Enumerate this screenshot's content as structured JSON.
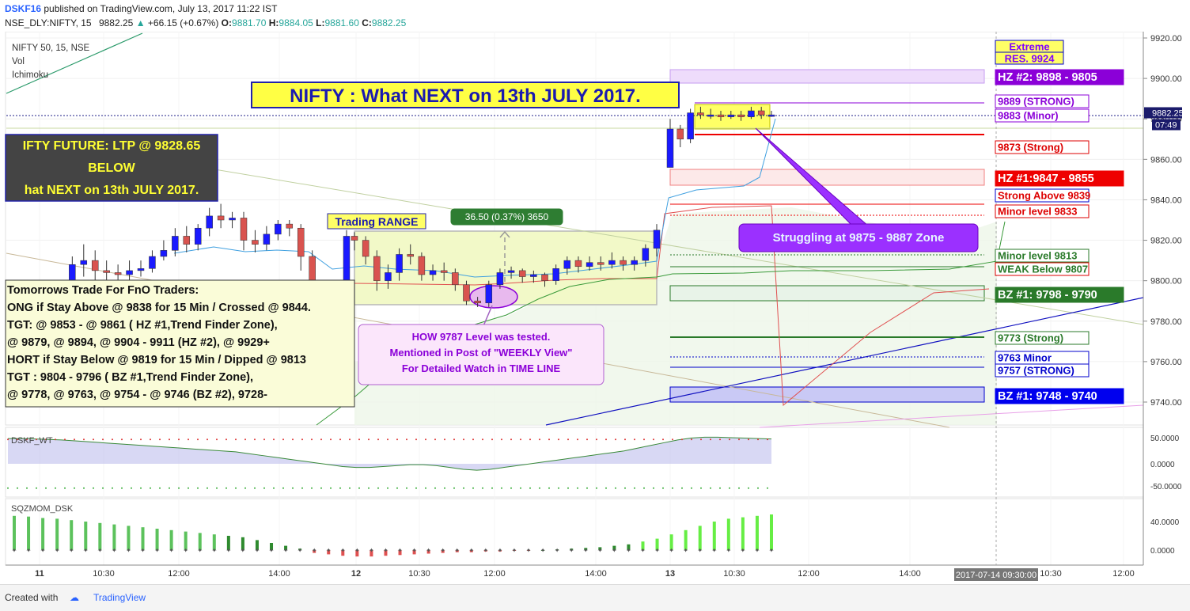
{
  "header": {
    "author": "DSKF16",
    "published": "published on TradingView.com, July 13, 2017 11:22 IST",
    "symbol": "NSE_DLY:NIFTY, 15",
    "last": "9882.25",
    "change": "+66.15 (+0.67%)",
    "o_label": "O:",
    "o": "9881.70",
    "h_label": "H:",
    "h": "9884.05",
    "l_label": "L:",
    "l": "9881.60",
    "c_label": "C:",
    "c": "9882.25"
  },
  "legend": [
    "NIFTY 50, 15, NSE",
    "Vol",
    "Ichimoku"
  ],
  "main_title": "NIFTY : What NEXT on 13th JULY 2017.",
  "dark_box": [
    "IFTY FUTURE: LTP @ 9828.65",
    "BELOW",
    "hat NEXT on 13th JULY 2017."
  ],
  "trade_box": [
    "Tomorrows Trade For FnO Traders:",
    "ONG if Stay Above @ 9838 for 15 Min / Crossed @ 9844.",
    "TGT: @ 9853 - @ 9861 ( HZ #1,Trend Finder Zone),",
    "@ 9879, @ 9894, @ 9904 - 9911 (HZ #2), @ 9929+",
    "HORT if Stay Below @ 9819 for 15 Min / Dipped @ 9813",
    "TGT : 9804 - 9796 ( BZ #1,Trend Finder Zone),",
    "@ 9778, @ 9763, @ 9754 - @ 9746 (BZ #2), 9728-"
  ],
  "how_box": [
    "HOW 9787 Level was tested.",
    "Mentioned in Post of \"WEEKLY View\"",
    "For Detailed Watch in TIME LINE"
  ],
  "trading_range": "Trading RANGE",
  "measure": "36.50 (0.37%) 3650",
  "struggling": "Struggling at 9875 - 9887 Zone",
  "levels": [
    {
      "text": "Extreme",
      "price": 9928,
      "fg": "#8000ff",
      "bg": "#ffff66",
      "border": "#0000cc"
    },
    {
      "text": "RES. 9924",
      "price": 9922,
      "fg": "#8000ff",
      "bg": "#ffff66",
      "border": "#0000cc"
    },
    {
      "text": "HZ #2: 9898 - 9805",
      "price": 9900,
      "fg": "#ffffff",
      "bg": "#8b00d8",
      "border": "#8b00d8"
    },
    {
      "text": "9889 (STRONG)",
      "price": 9889,
      "fg": "#8b00d8",
      "bg": "#ffffff",
      "border": "#8b00d8"
    },
    {
      "text": "9883 (Minor)",
      "price": 9883,
      "fg": "#8b00d8",
      "bg": "#ffffff",
      "border": "#8b00d8"
    },
    {
      "text": "9873 (Strong)",
      "price": 9873,
      "fg": "#dd0000",
      "bg": "#ffffff",
      "border": "#dd0000"
    },
    {
      "text": "HZ #1:9847 - 9855",
      "price": 9851,
      "fg": "#ffffff",
      "bg": "#ee0000",
      "border": "#ee0000"
    },
    {
      "text": "Strong  Above 9839",
      "price": 9841,
      "fg": "#dd0000",
      "bg": "#ffffff",
      "border": "#0000cc"
    },
    {
      "text": "Minor level 9833",
      "price": 9833,
      "fg": "#dd0000",
      "bg": "#ffffff",
      "border": "#dd0000"
    },
    {
      "text": "Minor level 9813",
      "price": 9813,
      "fg": "#2a7a2a",
      "bg": "#ffffff",
      "border": "#2a7a2a"
    },
    {
      "text": "WEAK Below 9807",
      "price": 9806,
      "fg": "#2a7a2a",
      "bg": "#ffffff",
      "border": "#dd0000"
    },
    {
      "text": "BZ #1: 9798 - 9790",
      "price": 9794,
      "fg": "#ffffff",
      "bg": "#2a7a2a",
      "border": "#2a7a2a"
    },
    {
      "text": "9773 (Strong)",
      "price": 9773,
      "fg": "#2a7a2a",
      "bg": "#ffffff",
      "border": "#2a7a2a"
    },
    {
      "text": "9763 Minor",
      "price": 9763,
      "fg": "#0000cc",
      "bg": "#ffffff",
      "border": "#0000cc"
    },
    {
      "text": "9757 (STRONG)",
      "price": 9757,
      "fg": "#0000cc",
      "bg": "#ffffff",
      "border": "#0000cc"
    },
    {
      "text": "BZ #1: 9748 - 9740",
      "price": 9744,
      "fg": "#ffffff",
      "bg": "#0000ee",
      "border": "#0000ee"
    }
  ],
  "price_marker": {
    "price": "9882.25",
    "time": "07:49"
  },
  "x_tick_labels": [
    "11",
    "10:30",
    "12:00",
    "14:00",
    "12",
    "10:30",
    "12:00",
    "14:00",
    "13",
    "10:30",
    "12:00",
    "14:00",
    "10:30",
    "12:00"
  ],
  "x_cursor_label": "2017-07-14 09:30:00",
  "indicator1": {
    "name": "DSKF_WT",
    "ticks": [
      "50.0000",
      "0.0000",
      "-50.0000"
    ]
  },
  "indicator2": {
    "name": "SQZMOM_DSK",
    "ticks": [
      "40.0000",
      "0.0000"
    ]
  },
  "footer": {
    "created": "Created with",
    "brand": "TradingView"
  },
  "colors": {
    "up": "#1a1aff",
    "down": "#d9534f",
    "range_fill": "#f2f9c8",
    "accent": "#8b00d8"
  },
  "chart_data": {
    "type": "candlestick",
    "y_range": [
      9730,
      9924
    ],
    "y_ticks": [
      9740,
      9760,
      9780,
      9800,
      9820,
      9840,
      9860,
      9880,
      9900,
      9920
    ],
    "sessions": [
      "11",
      "12",
      "13"
    ],
    "candles": [
      [
        9780,
        9770,
        9785,
        9765
      ],
      [
        9770,
        9760,
        9778,
        9755
      ],
      [
        9762,
        9790,
        9795,
        9758
      ],
      [
        9790,
        9808,
        9812,
        9786
      ],
      [
        9808,
        9810,
        9818,
        9802
      ],
      [
        9810,
        9805,
        9815,
        9800
      ],
      [
        9805,
        9804,
        9810,
        9798
      ],
      [
        9804,
        9803,
        9808,
        9800
      ],
      [
        9803,
        9805,
        9810,
        9800
      ],
      [
        9805,
        9806,
        9810,
        9802
      ],
      [
        9806,
        9812,
        9815,
        9804
      ],
      [
        9812,
        9815,
        9820,
        9810
      ],
      [
        9815,
        9822,
        9826,
        9812
      ],
      [
        9822,
        9818,
        9827,
        9814
      ],
      [
        9818,
        9826,
        9828,
        9815
      ],
      [
        9826,
        9832,
        9836,
        9822
      ],
      [
        9832,
        9830,
        9838,
        9826
      ],
      [
        9830,
        9831,
        9834,
        9826
      ],
      [
        9831,
        9820,
        9834,
        9815
      ],
      [
        9820,
        9818,
        9825,
        9814
      ],
      [
        9818,
        9823,
        9827,
        9815
      ],
      [
        9823,
        9828,
        9830,
        9820
      ],
      [
        9828,
        9826,
        9830,
        9822
      ],
      [
        9826,
        9812,
        9828,
        9805
      ],
      [
        9812,
        9776,
        9815,
        9770
      ],
      [
        9776,
        9790,
        9796,
        9774
      ],
      [
        9790,
        9785,
        9793,
        9780
      ],
      [
        9785,
        9822,
        9825,
        9783
      ],
      [
        9822,
        9820,
        9824,
        9815
      ],
      [
        9820,
        9812,
        9822,
        9808
      ],
      [
        9812,
        9800,
        9815,
        9795
      ],
      [
        9800,
        9804,
        9808,
        9796
      ],
      [
        9804,
        9813,
        9816,
        9800
      ],
      [
        9813,
        9812,
        9818,
        9808
      ],
      [
        9812,
        9803,
        9814,
        9800
      ],
      [
        9803,
        9805,
        9808,
        9800
      ],
      [
        9805,
        9804,
        9809,
        9800
      ],
      [
        9804,
        9798,
        9806,
        9795
      ],
      [
        9798,
        9790,
        9800,
        9788
      ],
      [
        9790,
        9789,
        9792,
        9787
      ],
      [
        9789,
        9798,
        9800,
        9787
      ],
      [
        9798,
        9804,
        9806,
        9796
      ],
      [
        9804,
        9805,
        9807,
        9801
      ],
      [
        9805,
        9802,
        9806,
        9799
      ],
      [
        9802,
        9803,
        9805,
        9799
      ],
      [
        9803,
        9800,
        9804,
        9797
      ],
      [
        9800,
        9806,
        9808,
        9798
      ],
      [
        9806,
        9810,
        9812,
        9803
      ],
      [
        9810,
        9807,
        9812,
        9804
      ],
      [
        9807,
        9809,
        9812,
        9805
      ],
      [
        9809,
        9808,
        9812,
        9805
      ],
      [
        9808,
        9810,
        9814,
        9806
      ],
      [
        9810,
        9808,
        9812,
        9805
      ],
      [
        9808,
        9810,
        9812,
        9805
      ],
      [
        9810,
        9816,
        9818,
        9807
      ],
      [
        9816,
        9825,
        9828,
        9812
      ],
      [
        9856,
        9875,
        9880,
        9856
      ],
      [
        9875,
        9870,
        9877,
        9866
      ],
      [
        9870,
        9883,
        9885,
        9868
      ],
      [
        9883,
        9882,
        9886,
        9880
      ],
      [
        9882,
        9882,
        9885,
        9880
      ],
      [
        9882,
        9881,
        9884,
        9879
      ],
      [
        9881,
        9882,
        9884,
        9880
      ],
      [
        9882,
        9881,
        9884,
        9879
      ],
      [
        9881,
        9884,
        9886,
        9880
      ],
      [
        9884,
        9882,
        9886,
        9880
      ],
      [
        9882,
        9882,
        9884,
        9881
      ]
    ],
    "wt": [
      55,
      55,
      54,
      53,
      52,
      50,
      48,
      46,
      44,
      42,
      40,
      38,
      36,
      34,
      32,
      30,
      28,
      26,
      22,
      18,
      14,
      10,
      6,
      2,
      -2,
      -6,
      -8,
      -8,
      -6,
      -4,
      -2,
      -2,
      -4,
      -8,
      -12,
      -14,
      -12,
      -8,
      -4,
      0,
      4,
      8,
      12,
      16,
      20,
      24,
      28,
      34,
      40,
      46,
      52,
      56,
      58,
      58,
      57,
      56,
      55,
      54
    ],
    "sqz": [
      48,
      47,
      45,
      44,
      42,
      40,
      38,
      36,
      34,
      32,
      30,
      28,
      26,
      24,
      22,
      20,
      18,
      14,
      10,
      6,
      2,
      -4,
      -6,
      -8,
      -9,
      -9,
      -8,
      -7,
      -6,
      -5,
      -4,
      -3,
      -3,
      -2,
      -2,
      -1,
      -1,
      0,
      1,
      2,
      3,
      4,
      6,
      8,
      12,
      16,
      22,
      28,
      34,
      40,
      44,
      46,
      48,
      50
    ]
  }
}
